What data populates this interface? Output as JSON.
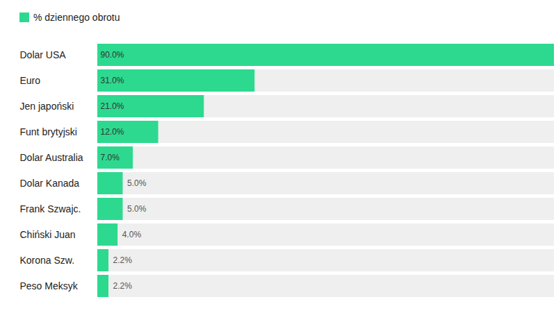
{
  "chart_data": {
    "type": "bar",
    "orientation": "horizontal",
    "categories": [
      "Dolar USA",
      "Euro",
      "Jen japoński",
      "Funt brytyjski",
      "Dolar Australia",
      "Dolar Kanada",
      "Frank Szwajc.",
      "Chiński Juan",
      "Korona Szw.",
      "Peso Meksyk"
    ],
    "series": [
      {
        "name": "% dziennego obrotu",
        "color": "#2dd98f",
        "values": [
          90.0,
          31.0,
          21.0,
          12.0,
          7.0,
          5.0,
          5.0,
          4.0,
          2.2,
          2.2
        ],
        "value_labels": [
          "90.0%",
          "31.0%",
          "21.0%",
          "12.0%",
          "7.0%",
          "5.0%",
          "5.0%",
          "4.0%",
          "2.2%",
          "2.2%"
        ]
      }
    ],
    "xlim": [
      0,
      90
    ],
    "xticks": [],
    "legend": "top-left",
    "data_labels": true,
    "grid": false,
    "tick_labels": "y"
  }
}
